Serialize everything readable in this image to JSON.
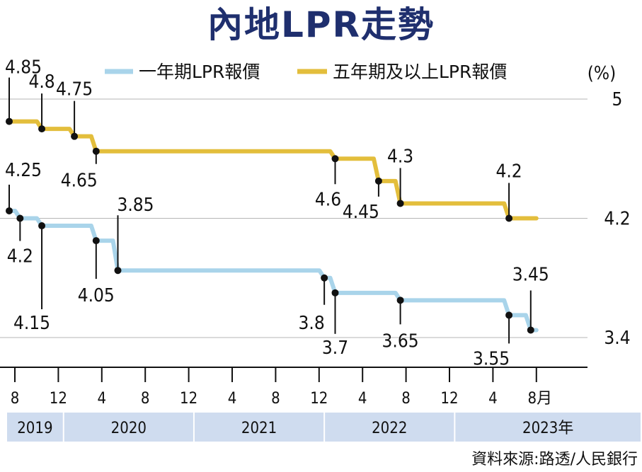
{
  "title": "內地LPR走勢",
  "source": "資料來源:路透/人民銀行",
  "colors": {
    "title": "#1f2f6e",
    "one_year": "#a9d4ea",
    "five_year": "#e3be3c",
    "year_band": "#cfdcef",
    "grid": "#b5b5b5"
  },
  "chart_data": {
    "type": "line",
    "title": "內地LPR走勢",
    "ylabel": "(%)",
    "y_ticks": [
      "5",
      "4.2",
      "3.4"
    ],
    "y_tick_values": [
      5,
      4.2,
      3.4
    ],
    "x_tick_labels": [
      "8",
      "12",
      "4",
      "8",
      "12",
      "4",
      "8",
      "12",
      "4",
      "8",
      "12",
      "4",
      "8月"
    ],
    "x_tick_month_index": [
      0,
      4,
      8,
      12,
      16,
      20,
      24,
      28,
      32,
      36,
      40,
      44,
      48
    ],
    "years": [
      "2019",
      "2020",
      "2021",
      "2022",
      "2023年"
    ],
    "year_month_index": [
      0,
      5,
      17,
      29,
      41,
      49
    ],
    "series": [
      {
        "name": "一年期LPR報價",
        "points": [
          [
            0,
            4.25
          ],
          [
            1,
            4.2
          ],
          [
            2,
            4.2
          ],
          [
            3,
            4.15
          ],
          [
            4,
            4.15
          ],
          [
            5,
            4.15
          ],
          [
            6,
            4.15
          ],
          [
            7,
            4.15
          ],
          [
            8,
            4.05
          ],
          [
            9,
            4.05
          ],
          [
            10,
            3.85
          ],
          [
            11,
            3.85
          ],
          [
            12,
            3.85
          ],
          [
            13,
            3.85
          ],
          [
            14,
            3.85
          ],
          [
            15,
            3.85
          ],
          [
            16,
            3.85
          ],
          [
            17,
            3.85
          ],
          [
            18,
            3.85
          ],
          [
            19,
            3.85
          ],
          [
            20,
            3.85
          ],
          [
            21,
            3.85
          ],
          [
            22,
            3.85
          ],
          [
            23,
            3.85
          ],
          [
            24,
            3.85
          ],
          [
            25,
            3.85
          ],
          [
            26,
            3.85
          ],
          [
            27,
            3.85
          ],
          [
            28,
            3.85
          ],
          [
            29,
            3.8
          ],
          [
            30,
            3.7
          ],
          [
            31,
            3.7
          ],
          [
            32,
            3.7
          ],
          [
            33,
            3.7
          ],
          [
            34,
            3.7
          ],
          [
            35,
            3.7
          ],
          [
            36,
            3.65
          ],
          [
            37,
            3.65
          ],
          [
            38,
            3.65
          ],
          [
            39,
            3.65
          ],
          [
            40,
            3.65
          ],
          [
            41,
            3.65
          ],
          [
            42,
            3.65
          ],
          [
            43,
            3.65
          ],
          [
            44,
            3.65
          ],
          [
            45,
            3.65
          ],
          [
            46,
            3.55
          ],
          [
            47,
            3.55
          ],
          [
            48,
            3.45
          ]
        ],
        "annotations": [
          {
            "month": 0,
            "value": 4.25,
            "label": "4.25",
            "pos": "above"
          },
          {
            "month": 1,
            "value": 4.2,
            "label": "4.2",
            "pos": "below"
          },
          {
            "month": 3,
            "value": 4.15,
            "label": "4.15",
            "pos": "below"
          },
          {
            "month": 8,
            "value": 4.05,
            "label": "4.05",
            "pos": "below"
          },
          {
            "month": 10,
            "value": 3.85,
            "label": "3.85",
            "pos": "above"
          },
          {
            "month": 29,
            "value": 3.8,
            "label": "3.8",
            "pos": "below"
          },
          {
            "month": 30,
            "value": 3.7,
            "label": "3.7",
            "pos": "below"
          },
          {
            "month": 36,
            "value": 3.65,
            "label": "3.65",
            "pos": "below"
          },
          {
            "month": 46,
            "value": 3.55,
            "label": "3.55",
            "pos": "below"
          },
          {
            "month": 48,
            "value": 3.45,
            "label": "3.45",
            "pos": "above"
          }
        ]
      },
      {
        "name": "五年期及以上LPR報價",
        "points": [
          [
            0,
            4.85
          ],
          [
            1,
            4.85
          ],
          [
            2,
            4.85
          ],
          [
            3,
            4.8
          ],
          [
            4,
            4.8
          ],
          [
            5,
            4.8
          ],
          [
            6,
            4.75
          ],
          [
            7,
            4.75
          ],
          [
            8,
            4.65
          ],
          [
            9,
            4.65
          ],
          [
            10,
            4.65
          ],
          [
            11,
            4.65
          ],
          [
            12,
            4.65
          ],
          [
            13,
            4.65
          ],
          [
            14,
            4.65
          ],
          [
            15,
            4.65
          ],
          [
            16,
            4.65
          ],
          [
            17,
            4.65
          ],
          [
            18,
            4.65
          ],
          [
            19,
            4.65
          ],
          [
            20,
            4.65
          ],
          [
            21,
            4.65
          ],
          [
            22,
            4.65
          ],
          [
            23,
            4.65
          ],
          [
            24,
            4.65
          ],
          [
            25,
            4.65
          ],
          [
            26,
            4.65
          ],
          [
            27,
            4.65
          ],
          [
            28,
            4.65
          ],
          [
            29,
            4.65
          ],
          [
            30,
            4.6
          ],
          [
            31,
            4.6
          ],
          [
            32,
            4.6
          ],
          [
            33,
            4.6
          ],
          [
            34,
            4.45
          ],
          [
            35,
            4.45
          ],
          [
            36,
            4.3
          ],
          [
            37,
            4.3
          ],
          [
            38,
            4.3
          ],
          [
            39,
            4.3
          ],
          [
            40,
            4.3
          ],
          [
            41,
            4.3
          ],
          [
            42,
            4.3
          ],
          [
            43,
            4.3
          ],
          [
            44,
            4.3
          ],
          [
            45,
            4.3
          ],
          [
            46,
            4.2
          ],
          [
            47,
            4.2
          ],
          [
            48,
            4.2
          ]
        ],
        "annotations": [
          {
            "month": 0,
            "value": 4.85,
            "label": "4.85",
            "pos": "above"
          },
          {
            "month": 3,
            "value": 4.8,
            "label": "4.8",
            "pos": "above"
          },
          {
            "month": 6,
            "value": 4.75,
            "label": "4.75",
            "pos": "above"
          },
          {
            "month": 8,
            "value": 4.65,
            "label": "4.65",
            "pos": "below"
          },
          {
            "month": 30,
            "value": 4.6,
            "label": "4.6",
            "pos": "below"
          },
          {
            "month": 34,
            "value": 4.45,
            "label": "4.45",
            "pos": "below"
          },
          {
            "month": 36,
            "value": 4.3,
            "label": "4.3",
            "pos": "above"
          },
          {
            "month": 46,
            "value": 4.2,
            "label": "4.2",
            "pos": "above"
          }
        ]
      }
    ]
  }
}
